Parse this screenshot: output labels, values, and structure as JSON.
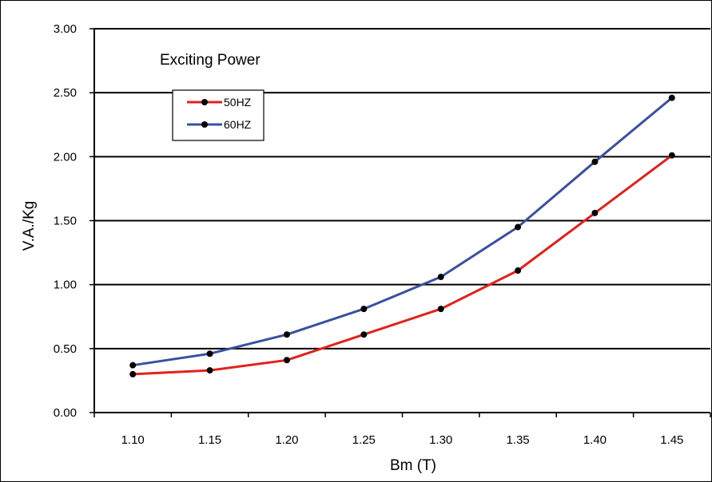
{
  "chart_data": {
    "type": "line",
    "title": "Exciting Power",
    "xlabel": "Bm (T)",
    "ylabel": "V.A./Kg",
    "x": [
      1.1,
      1.15,
      1.2,
      1.25,
      1.3,
      1.35,
      1.4,
      1.45
    ],
    "x_tick_labels": [
      "1.10",
      "1.15",
      "1.20",
      "1.25",
      "1.30",
      "1.35",
      "1.40",
      "1.45"
    ],
    "y_tick_labels": [
      "0.00",
      "0.50",
      "1.00",
      "1.50",
      "2.00",
      "2.50",
      "3.00"
    ],
    "y_ticks": [
      0,
      0.5,
      1.0,
      1.5,
      2.0,
      2.5,
      3.0
    ],
    "xlim": [
      1.075,
      1.475
    ],
    "ylim": [
      0,
      3.0
    ],
    "grid": "horizontal",
    "legend_position": "top-left",
    "series": [
      {
        "name": "50HZ",
        "color": "#e3211c",
        "values": [
          0.3,
          0.33,
          0.41,
          0.61,
          0.81,
          1.11,
          1.56,
          2.01
        ]
      },
      {
        "name": "60HZ",
        "color": "#3a4fa0",
        "values": [
          0.37,
          0.46,
          0.61,
          0.81,
          1.06,
          1.45,
          1.96,
          2.46
        ]
      }
    ]
  }
}
